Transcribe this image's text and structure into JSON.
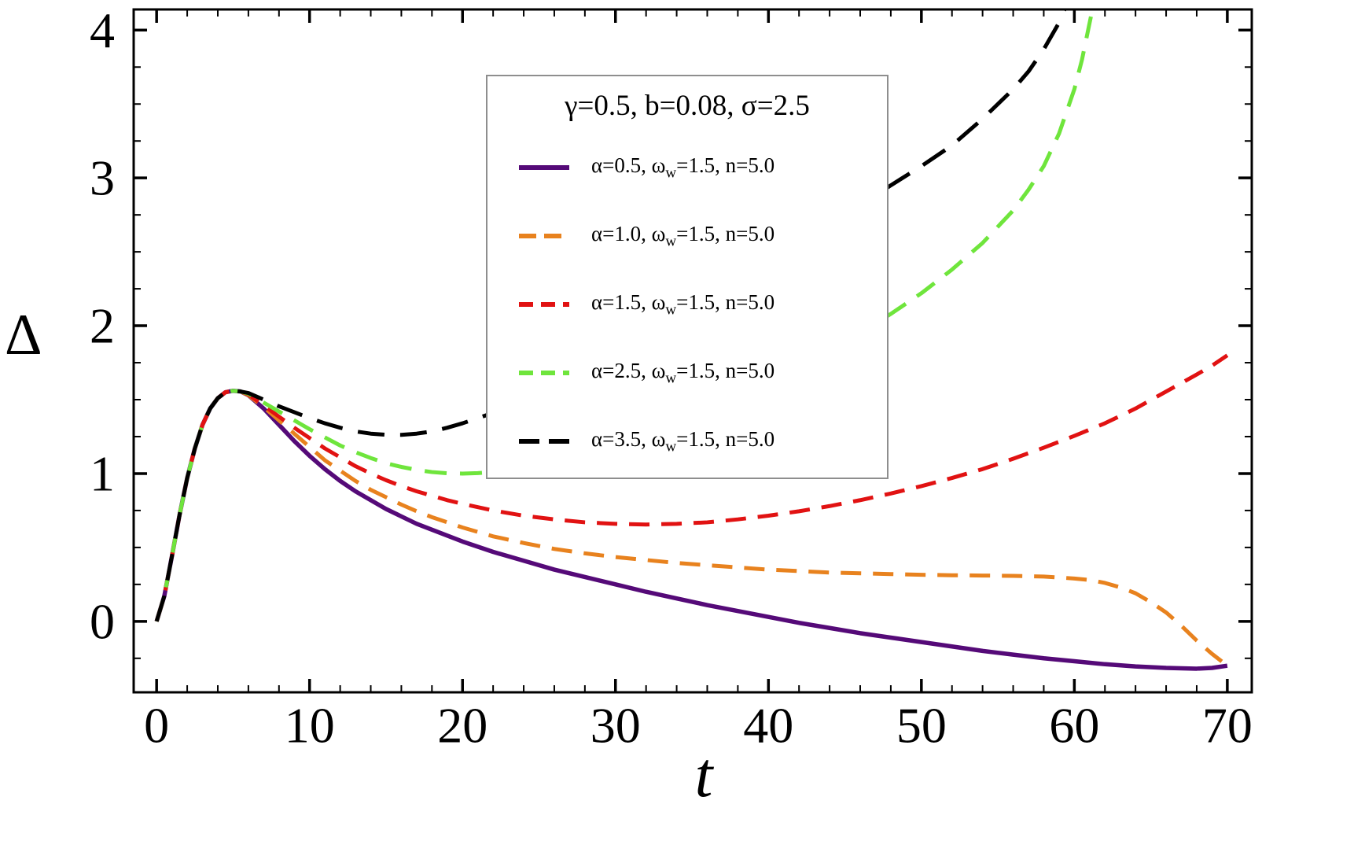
{
  "chart_data": {
    "type": "line",
    "title": "",
    "xlabel": "t",
    "ylabel": "Δ",
    "xlim": [
      -1.5,
      71.6
    ],
    "ylim": [
      -0.48,
      4.14
    ],
    "x_ticks": [
      0,
      10,
      20,
      30,
      40,
      50,
      60,
      70
    ],
    "y_ticks": [
      0,
      1,
      2,
      3,
      4
    ],
    "x_minor_step": 2,
    "y_minor_step": 0.25,
    "grid": false,
    "legend": {
      "title": "γ=0.5, b=0.08, σ=2.5",
      "position": "upper-center"
    },
    "series": [
      {
        "name": "alpha-0p5",
        "label_prefix": "α=0.5, ω",
        "label_sub": "w",
        "label_suffix": "=1.5, n=5.0",
        "color": "#550a78",
        "dash": "solid",
        "legend_dash": "",
        "width": 5.5,
        "points": [
          [
            0,
            0
          ],
          [
            0.5,
            0.17
          ],
          [
            1,
            0.44
          ],
          [
            1.5,
            0.72
          ],
          [
            2,
            0.97
          ],
          [
            2.5,
            1.17
          ],
          [
            3,
            1.33
          ],
          [
            3.5,
            1.44
          ],
          [
            4,
            1.51
          ],
          [
            4.5,
            1.55
          ],
          [
            5,
            1.56
          ],
          [
            5.5,
            1.555
          ],
          [
            6,
            1.53
          ],
          [
            7,
            1.44
          ],
          [
            8,
            1.33
          ],
          [
            9,
            1.22
          ],
          [
            10,
            1.12
          ],
          [
            11,
            1.03
          ],
          [
            12,
            0.95
          ],
          [
            13,
            0.88
          ],
          [
            14,
            0.82
          ],
          [
            15,
            0.76
          ],
          [
            16,
            0.71
          ],
          [
            17,
            0.66
          ],
          [
            18,
            0.62
          ],
          [
            19,
            0.58
          ],
          [
            20,
            0.54
          ],
          [
            22,
            0.47
          ],
          [
            24,
            0.41
          ],
          [
            26,
            0.35
          ],
          [
            28,
            0.3
          ],
          [
            30,
            0.25
          ],
          [
            32,
            0.2
          ],
          [
            34,
            0.155
          ],
          [
            36,
            0.11
          ],
          [
            38,
            0.07
          ],
          [
            40,
            0.03
          ],
          [
            42,
            -0.01
          ],
          [
            44,
            -0.045
          ],
          [
            46,
            -0.08
          ],
          [
            48,
            -0.11
          ],
          [
            50,
            -0.14
          ],
          [
            52,
            -0.17
          ],
          [
            54,
            -0.2
          ],
          [
            56,
            -0.225
          ],
          [
            58,
            -0.25
          ],
          [
            60,
            -0.27
          ],
          [
            62,
            -0.29
          ],
          [
            64,
            -0.305
          ],
          [
            66,
            -0.315
          ],
          [
            68,
            -0.32
          ],
          [
            69,
            -0.315
          ],
          [
            70,
            -0.3
          ]
        ]
      },
      {
        "name": "alpha-1p0",
        "label_prefix": "α=1.0, ω",
        "label_sub": "w",
        "label_suffix": "=1.5, n=5.0",
        "color": "#e8821e",
        "dash": "26 15",
        "legend_dash": "22 10",
        "width": 5,
        "points": [
          [
            0,
            0
          ],
          [
            0.5,
            0.17
          ],
          [
            1,
            0.44
          ],
          [
            1.5,
            0.72
          ],
          [
            2,
            0.97
          ],
          [
            2.5,
            1.17
          ],
          [
            3,
            1.33
          ],
          [
            3.5,
            1.44
          ],
          [
            4,
            1.51
          ],
          [
            4.5,
            1.55
          ],
          [
            5,
            1.56
          ],
          [
            5.5,
            1.555
          ],
          [
            6,
            1.53
          ],
          [
            7,
            1.45
          ],
          [
            8,
            1.36
          ],
          [
            9,
            1.27
          ],
          [
            10,
            1.18
          ],
          [
            11,
            1.09
          ],
          [
            12,
            1.02
          ],
          [
            13,
            0.95
          ],
          [
            14,
            0.89
          ],
          [
            15,
            0.84
          ],
          [
            16,
            0.79
          ],
          [
            17,
            0.745
          ],
          [
            18,
            0.705
          ],
          [
            19,
            0.67
          ],
          [
            20,
            0.635
          ],
          [
            22,
            0.575
          ],
          [
            24,
            0.53
          ],
          [
            26,
            0.49
          ],
          [
            28,
            0.46
          ],
          [
            30,
            0.435
          ],
          [
            32,
            0.415
          ],
          [
            34,
            0.395
          ],
          [
            36,
            0.38
          ],
          [
            38,
            0.365
          ],
          [
            40,
            0.35
          ],
          [
            42,
            0.34
          ],
          [
            44,
            0.33
          ],
          [
            46,
            0.325
          ],
          [
            48,
            0.32
          ],
          [
            50,
            0.315
          ],
          [
            52,
            0.312
          ],
          [
            54,
            0.31
          ],
          [
            56,
            0.308
          ],
          [
            58,
            0.303
          ],
          [
            60,
            0.29
          ],
          [
            61,
            0.28
          ],
          [
            62,
            0.26
          ],
          [
            63,
            0.23
          ],
          [
            64,
            0.19
          ],
          [
            65,
            0.13
          ],
          [
            66,
            0.06
          ],
          [
            67,
            -0.03
          ],
          [
            68,
            -0.13
          ],
          [
            69,
            -0.22
          ],
          [
            70,
            -0.3
          ]
        ]
      },
      {
        "name": "alpha-1p5",
        "label_prefix": "α=1.5, ω",
        "label_sub": "w",
        "label_suffix": "=1.5, n=5.0",
        "color": "#e11212",
        "dash": "26 15",
        "legend_dash": "18 10",
        "width": 5,
        "points": [
          [
            0,
            0
          ],
          [
            0.5,
            0.17
          ],
          [
            1,
            0.44
          ],
          [
            1.5,
            0.72
          ],
          [
            2,
            0.97
          ],
          [
            2.5,
            1.17
          ],
          [
            3,
            1.33
          ],
          [
            3.5,
            1.44
          ],
          [
            4,
            1.51
          ],
          [
            4.5,
            1.55
          ],
          [
            5,
            1.56
          ],
          [
            5.5,
            1.555
          ],
          [
            6,
            1.535
          ],
          [
            7,
            1.46
          ],
          [
            8,
            1.385
          ],
          [
            9,
            1.31
          ],
          [
            10,
            1.24
          ],
          [
            11,
            1.17
          ],
          [
            12,
            1.11
          ],
          [
            13,
            1.05
          ],
          [
            14,
            1.0
          ],
          [
            15,
            0.955
          ],
          [
            16,
            0.915
          ],
          [
            17,
            0.88
          ],
          [
            18,
            0.85
          ],
          [
            19,
            0.82
          ],
          [
            20,
            0.795
          ],
          [
            22,
            0.75
          ],
          [
            24,
            0.715
          ],
          [
            26,
            0.69
          ],
          [
            28,
            0.67
          ],
          [
            30,
            0.66
          ],
          [
            32,
            0.655
          ],
          [
            34,
            0.66
          ],
          [
            36,
            0.67
          ],
          [
            38,
            0.69
          ],
          [
            40,
            0.715
          ],
          [
            42,
            0.745
          ],
          [
            44,
            0.78
          ],
          [
            46,
            0.82
          ],
          [
            48,
            0.865
          ],
          [
            50,
            0.915
          ],
          [
            52,
            0.97
          ],
          [
            54,
            1.03
          ],
          [
            56,
            1.1
          ],
          [
            58,
            1.175
          ],
          [
            60,
            1.255
          ],
          [
            62,
            1.34
          ],
          [
            64,
            1.44
          ],
          [
            66,
            1.555
          ],
          [
            68,
            1.67
          ],
          [
            69,
            1.73
          ],
          [
            70,
            1.8
          ]
        ]
      },
      {
        "name": "alpha-2p5",
        "label_prefix": "α=2.5, ω",
        "label_sub": "w",
        "label_suffix": "=1.5, n=5.0",
        "color": "#6fe53c",
        "dash": "28 17",
        "legend_dash": "18 10",
        "width": 5,
        "points": [
          [
            0,
            0
          ],
          [
            0.5,
            0.17
          ],
          [
            1,
            0.44
          ],
          [
            1.5,
            0.72
          ],
          [
            2,
            0.97
          ],
          [
            2.5,
            1.17
          ],
          [
            3,
            1.33
          ],
          [
            3.5,
            1.44
          ],
          [
            4,
            1.51
          ],
          [
            4.5,
            1.55
          ],
          [
            5,
            1.56
          ],
          [
            5.5,
            1.555
          ],
          [
            6,
            1.54
          ],
          [
            7,
            1.48
          ],
          [
            8,
            1.42
          ],
          [
            9,
            1.36
          ],
          [
            10,
            1.3
          ],
          [
            11,
            1.245
          ],
          [
            12,
            1.19
          ],
          [
            13,
            1.145
          ],
          [
            14,
            1.105
          ],
          [
            15,
            1.07
          ],
          [
            16,
            1.045
          ],
          [
            17,
            1.025
          ],
          [
            18,
            1.01
          ],
          [
            19,
            1.002
          ],
          [
            20,
            1.0
          ],
          [
            21,
            1.003
          ],
          [
            22,
            1.01
          ],
          [
            24,
            1.045
          ],
          [
            26,
            1.09
          ],
          [
            28,
            1.15
          ],
          [
            30,
            1.21
          ],
          [
            32,
            1.28
          ],
          [
            34,
            1.36
          ],
          [
            36,
            1.44
          ],
          [
            38,
            1.53
          ],
          [
            40,
            1.62
          ],
          [
            42,
            1.72
          ],
          [
            44,
            1.83
          ],
          [
            46,
            1.95
          ],
          [
            48,
            2.08
          ],
          [
            50,
            2.22
          ],
          [
            52,
            2.38
          ],
          [
            54,
            2.56
          ],
          [
            56,
            2.78
          ],
          [
            57,
            2.92
          ],
          [
            58,
            3.08
          ],
          [
            59,
            3.3
          ],
          [
            60,
            3.6
          ],
          [
            60.5,
            3.8
          ],
          [
            61,
            4.05
          ],
          [
            61.3,
            4.2
          ]
        ]
      },
      {
        "name": "alpha-3p5",
        "label_prefix": "α=3.5, ω",
        "label_sub": "w",
        "label_suffix": "=1.5, n=5.0",
        "color": "#000000",
        "dash": "34 20",
        "legend_dash": "26 12",
        "width": 5,
        "points": [
          [
            0,
            0
          ],
          [
            0.5,
            0.17
          ],
          [
            1,
            0.44
          ],
          [
            1.5,
            0.72
          ],
          [
            2,
            0.97
          ],
          [
            2.5,
            1.17
          ],
          [
            3,
            1.33
          ],
          [
            3.5,
            1.44
          ],
          [
            4,
            1.51
          ],
          [
            4.5,
            1.55
          ],
          [
            5,
            1.56
          ],
          [
            5.5,
            1.555
          ],
          [
            6,
            1.545
          ],
          [
            7,
            1.5
          ],
          [
            8,
            1.455
          ],
          [
            9,
            1.415
          ],
          [
            10,
            1.375
          ],
          [
            11,
            1.34
          ],
          [
            12,
            1.31
          ],
          [
            13,
            1.285
          ],
          [
            14,
            1.27
          ],
          [
            15,
            1.262
          ],
          [
            16,
            1.262
          ],
          [
            17,
            1.27
          ],
          [
            18,
            1.285
          ],
          [
            19,
            1.31
          ],
          [
            20,
            1.34
          ],
          [
            21,
            1.375
          ],
          [
            22,
            1.41
          ],
          [
            24,
            1.49
          ],
          [
            26,
            1.57
          ],
          [
            28,
            1.66
          ],
          [
            30,
            1.75
          ],
          [
            32,
            1.85
          ],
          [
            34,
            1.96
          ],
          [
            36,
            2.08
          ],
          [
            38,
            2.21
          ],
          [
            40,
            2.35
          ],
          [
            42,
            2.5
          ],
          [
            44,
            2.66
          ],
          [
            46,
            2.81
          ],
          [
            48,
            2.95
          ],
          [
            50,
            3.08
          ],
          [
            52,
            3.22
          ],
          [
            54,
            3.4
          ],
          [
            56,
            3.6
          ],
          [
            57,
            3.72
          ],
          [
            58,
            3.87
          ],
          [
            59,
            4.05
          ],
          [
            59.6,
            4.2
          ]
        ]
      }
    ]
  },
  "frame": {
    "color": "#000000",
    "tick_color": "#000000"
  }
}
